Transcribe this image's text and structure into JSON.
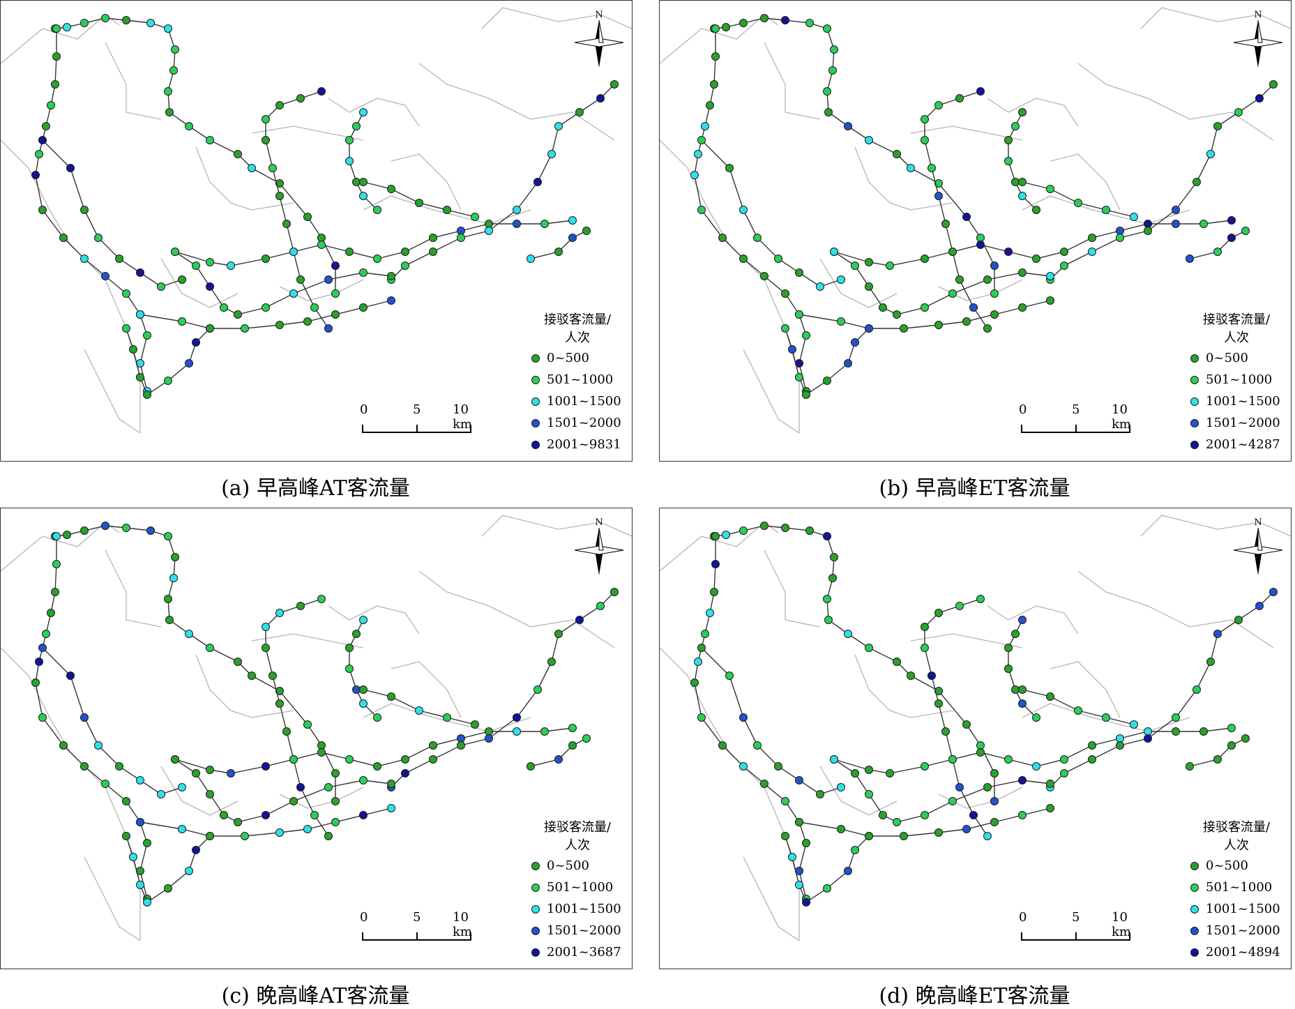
{
  "legend": {
    "title_line1": "接驳客流量/",
    "title_line2": "人次",
    "colors": [
      "#2ca02c",
      "#2ecc5a",
      "#30e0e8",
      "#2452c8",
      "#141496"
    ]
  },
  "scale": {
    "n0": "0",
    "n5": "5",
    "n10": "10 km"
  },
  "north_label": "N",
  "panels": [
    {
      "caption": "(a) 早高峰AT客流量",
      "classes": [
        "0~500",
        "501~1000",
        "1001~1500",
        "1501~2000",
        "2001~9831"
      ]
    },
    {
      "caption": "(b) 早高峰ET客流量",
      "classes": [
        "0~500",
        "501~1000",
        "1001~1500",
        "1501~2000",
        "2001~4287"
      ]
    },
    {
      "caption": "(c) 晚高峰AT客流量",
      "classes": [
        "0~500",
        "501~1000",
        "1001~1500",
        "1501~2000",
        "2001~3687"
      ]
    },
    {
      "caption": "(d) 晚高峰ET客流量",
      "classes": [
        "0~500",
        "501~1000",
        "1001~1500",
        "1501~2000",
        "2001~4894"
      ]
    }
  ]
}
